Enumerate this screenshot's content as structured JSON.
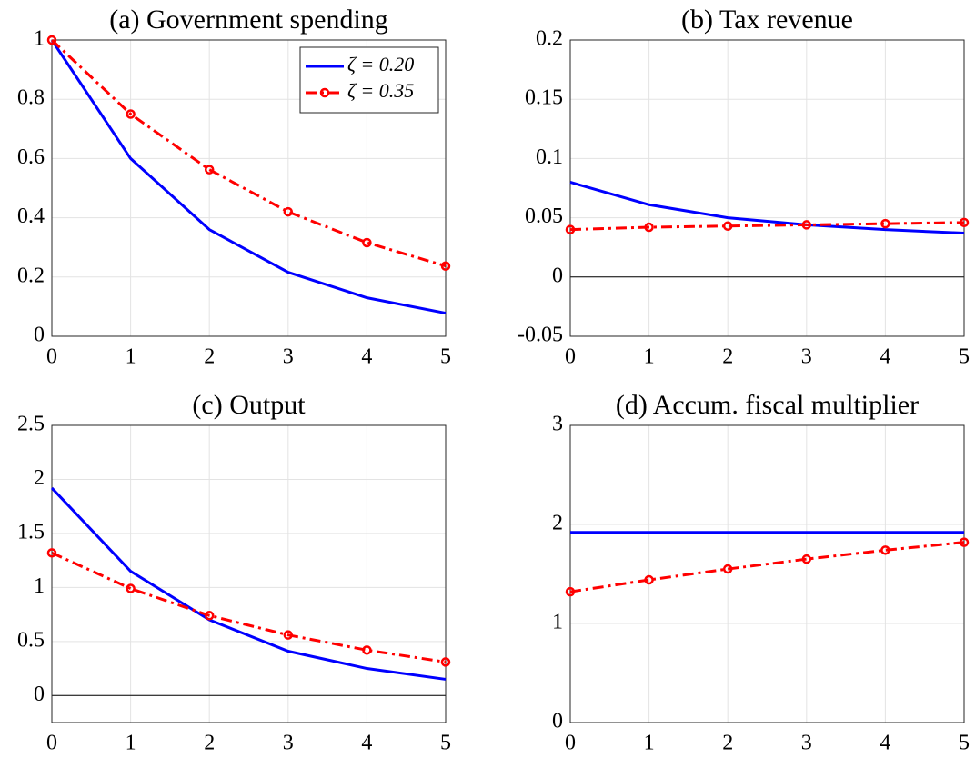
{
  "chart_data": [
    {
      "type": "line",
      "title": "(a) Government spending",
      "x": [
        0,
        1,
        2,
        3,
        4,
        5
      ],
      "xlim": [
        0,
        5
      ],
      "xticks": [
        0,
        1,
        2,
        3,
        4,
        5
      ],
      "ylim": [
        0,
        1
      ],
      "yticks": [
        0,
        0.2,
        0.4,
        0.6,
        0.8,
        1
      ],
      "grid": true,
      "legend": "northeast",
      "series": [
        {
          "name": "ζ = 0.20",
          "color": "#0000ff",
          "linestyle": "solid",
          "values": [
            1,
            0.6,
            0.36,
            0.216,
            0.13,
            0.078
          ]
        },
        {
          "name": "ζ = 0.35",
          "color": "#ff0000",
          "linestyle": "dashdot",
          "marker": "o",
          "values": [
            1,
            0.75,
            0.5625,
            0.42,
            0.316,
            0.237
          ]
        }
      ]
    },
    {
      "type": "line",
      "title": "(b) Tax revenue",
      "x": [
        0,
        1,
        2,
        3,
        4,
        5
      ],
      "xlim": [
        0,
        5
      ],
      "xticks": [
        0,
        1,
        2,
        3,
        4,
        5
      ],
      "ylim": [
        -0.05,
        0.2
      ],
      "yticks": [
        -0.05,
        0,
        0.05,
        0.1,
        0.15,
        0.2
      ],
      "grid": true,
      "zero_line": true,
      "series": [
        {
          "color": "#0000ff",
          "linestyle": "solid",
          "values": [
            0.08,
            0.061,
            0.05,
            0.044,
            0.04,
            0.037
          ]
        },
        {
          "color": "#ff0000",
          "linestyle": "dashdot",
          "marker": "o",
          "values": [
            0.04,
            0.042,
            0.043,
            0.044,
            0.045,
            0.046
          ]
        }
      ]
    },
    {
      "type": "line",
      "title": "(c) Output",
      "x": [
        0,
        1,
        2,
        3,
        4,
        5
      ],
      "xlim": [
        0,
        5
      ],
      "xticks": [
        0,
        1,
        2,
        3,
        4,
        5
      ],
      "ylim": [
        -0.25,
        2.5
      ],
      "yticks": [
        0,
        0.5,
        1,
        1.5,
        2,
        2.5
      ],
      "grid": true,
      "zero_line": true,
      "series": [
        {
          "color": "#0000ff",
          "linestyle": "solid",
          "values": [
            1.92,
            1.15,
            0.7,
            0.41,
            0.25,
            0.15
          ]
        },
        {
          "color": "#ff0000",
          "linestyle": "dashdot",
          "marker": "o",
          "values": [
            1.32,
            0.99,
            0.74,
            0.56,
            0.42,
            0.31
          ]
        }
      ]
    },
    {
      "type": "line",
      "title": "(d) Accum. fiscal multiplier",
      "x": [
        0,
        1,
        2,
        3,
        4,
        5
      ],
      "xlim": [
        0,
        5
      ],
      "xticks": [
        0,
        1,
        2,
        3,
        4,
        5
      ],
      "ylim": [
        0,
        3
      ],
      "yticks": [
        0,
        1,
        2,
        3
      ],
      "grid": true,
      "series": [
        {
          "color": "#0000ff",
          "linestyle": "solid",
          "values": [
            1.92,
            1.92,
            1.92,
            1.92,
            1.92,
            1.92
          ]
        },
        {
          "color": "#ff0000",
          "linestyle": "dashdot",
          "marker": "o",
          "values": [
            1.32,
            1.44,
            1.55,
            1.65,
            1.74,
            1.82
          ]
        }
      ]
    }
  ]
}
